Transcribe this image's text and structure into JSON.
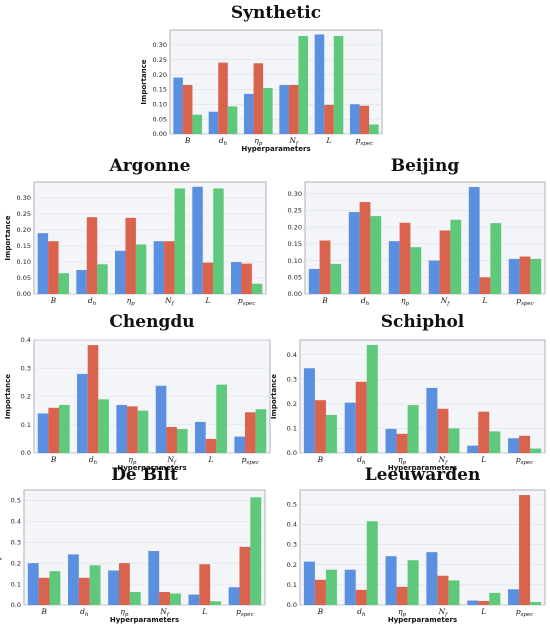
{
  "colors": {
    "B": "#5b8fe0",
    "C": "#d9634c",
    "D": "#5fc97b"
  },
  "chart_data": [
    {
      "type": "bar",
      "title": "Synthetic",
      "categories": [
        "B",
        "d_h",
        "η_p",
        "N_f",
        "L",
        "p_spec"
      ],
      "xlabel": "Hyperparameters",
      "ylabel": "Importance",
      "ylim": [
        0,
        0.35
      ],
      "yticks": [
        "0.00",
        "0.05",
        "0.10",
        "0.15",
        "0.20",
        "0.25",
        "0.30"
      ],
      "grid": true,
      "series": [
        {
          "values": [
            0.19,
            0.075,
            0.135,
            0.165,
            0.335,
            0.1
          ]
        },
        {
          "values": [
            0.165,
            0.24,
            0.238,
            0.165,
            0.098,
            0.095
          ]
        },
        {
          "values": [
            0.065,
            0.093,
            0.155,
            0.33,
            0.33,
            0.032
          ]
        }
      ]
    },
    {
      "type": "bar",
      "title": "Argonne",
      "categories": [
        "B",
        "d_h",
        "η_p",
        "N_f",
        "L",
        "p_spec"
      ],
      "xlabel": "",
      "ylabel": "Importance",
      "ylim": [
        0,
        0.35
      ],
      "yticks": [
        "0.00",
        "0.05",
        "0.10",
        "0.15",
        "0.20",
        "0.25",
        "0.30"
      ],
      "grid": true,
      "series": [
        {
          "values": [
            0.19,
            0.075,
            0.135,
            0.165,
            0.335,
            0.1
          ]
        },
        {
          "values": [
            0.165,
            0.24,
            0.238,
            0.165,
            0.098,
            0.095
          ]
        },
        {
          "values": [
            0.065,
            0.093,
            0.155,
            0.33,
            0.33,
            0.032
          ]
        }
      ]
    },
    {
      "type": "bar",
      "title": "Beijing",
      "categories": [
        "B",
        "d_h",
        "η_p",
        "N_f",
        "L",
        "p_spec"
      ],
      "xlabel": "",
      "ylabel": "",
      "ylim": [
        0,
        0.335
      ],
      "yticks": [
        "0.00",
        "0.05",
        "0.10",
        "0.15",
        "0.20",
        "0.25",
        "0.30"
      ],
      "grid": true,
      "series": [
        {
          "values": [
            0.075,
            0.245,
            0.158,
            0.1,
            0.32,
            0.105
          ]
        },
        {
          "values": [
            0.16,
            0.275,
            0.213,
            0.19,
            0.05,
            0.112
          ]
        },
        {
          "values": [
            0.09,
            0.233,
            0.14,
            0.222,
            0.212,
            0.105
          ]
        }
      ]
    },
    {
      "type": "bar",
      "title": "Chengdu",
      "categories": [
        "B",
        "d_h",
        "η_p",
        "N_f",
        "L",
        "p_spec"
      ],
      "xlabel": "Hyperparameters",
      "ylabel": "Importance",
      "ylim": [
        0,
        0.4
      ],
      "yticks": [
        "0.0",
        "0.1",
        "0.2",
        "0.3",
        "0.4"
      ],
      "grid": true,
      "series": [
        {
          "values": [
            0.14,
            0.28,
            0.17,
            0.238,
            0.11,
            0.058
          ]
        },
        {
          "values": [
            0.16,
            0.382,
            0.165,
            0.092,
            0.05,
            0.144
          ]
        },
        {
          "values": [
            0.17,
            0.19,
            0.15,
            0.085,
            0.242,
            0.155
          ]
        }
      ]
    },
    {
      "type": "bar",
      "title": "Schiphol",
      "categories": [
        "B",
        "d_h",
        "η_p",
        "N_f",
        "L",
        "p_spec"
      ],
      "xlabel": "Hyperparameters",
      "ylabel": "Importance",
      "ylim": [
        0,
        0.46
      ],
      "yticks": [
        "0.0",
        "0.1",
        "0.2",
        "0.3",
        "0.4"
      ],
      "grid": true,
      "series": [
        {
          "values": [
            0.345,
            0.205,
            0.098,
            0.265,
            0.03,
            0.06
          ]
        },
        {
          "values": [
            0.215,
            0.29,
            0.078,
            0.18,
            0.168,
            0.07
          ]
        },
        {
          "values": [
            0.155,
            0.44,
            0.195,
            0.1,
            0.088,
            0.018
          ]
        }
      ]
    },
    {
      "type": "bar",
      "title": "De Bilt",
      "categories": [
        "B",
        "d_h",
        "η_p",
        "N_f",
        "L",
        "p_spec"
      ],
      "xlabel": "Hyperparameters",
      "ylabel": "Importance",
      "ylim": [
        0,
        0.55
      ],
      "yticks": [
        "0.0",
        "0.1",
        "0.2",
        "0.3",
        "0.4",
        "0.5"
      ],
      "grid": true,
      "series": [
        {
          "values": [
            0.2,
            0.242,
            0.165,
            0.258,
            0.05,
            0.085
          ]
        },
        {
          "values": [
            0.13,
            0.13,
            0.2,
            0.062,
            0.195,
            0.278
          ]
        },
        {
          "values": [
            0.162,
            0.19,
            0.062,
            0.055,
            0.018,
            0.515
          ]
        }
      ]
    },
    {
      "type": "bar",
      "title": "Leeuwarden",
      "categories": [
        "B",
        "d_h",
        "η_p",
        "N_f",
        "L",
        "p_spec"
      ],
      "xlabel": "Hyperparameters",
      "ylabel": "",
      "ylim": [
        0,
        0.57
      ],
      "yticks": [
        "0.0",
        "0.1",
        "0.2",
        "0.3",
        "0.4",
        "0.5"
      ],
      "grid": true,
      "series": [
        {
          "values": [
            0.215,
            0.175,
            0.242,
            0.262,
            0.022,
            0.078
          ]
        },
        {
          "values": [
            0.125,
            0.075,
            0.09,
            0.145,
            0.02,
            0.545
          ]
        },
        {
          "values": [
            0.175,
            0.415,
            0.222,
            0.122,
            0.06,
            0.015
          ]
        }
      ]
    }
  ]
}
